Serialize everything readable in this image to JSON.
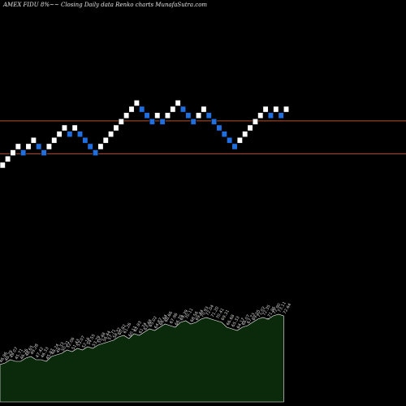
{
  "title": "AMEX  FIDU  8%~~  Closing Daily data  Renko  charts MunafaSutra.com",
  "colors": {
    "background": "#000000",
    "up_brick": "#ffffff",
    "down_brick": "#1f6fe0",
    "resistance_line": "#b5522e",
    "volume_fill": "#0b2a0b",
    "volume_stroke": "#ffffff"
  },
  "chart_data": {
    "type": "renko",
    "bricks": [
      {
        "dir": "up"
      },
      {
        "dir": "up"
      },
      {
        "dir": "up"
      },
      {
        "dir": "up"
      },
      {
        "dir": "down"
      },
      {
        "dir": "up"
      },
      {
        "dir": "up"
      },
      {
        "dir": "down"
      },
      {
        "dir": "down"
      },
      {
        "dir": "up"
      },
      {
        "dir": "up"
      },
      {
        "dir": "up"
      },
      {
        "dir": "up"
      },
      {
        "dir": "down"
      },
      {
        "dir": "up"
      },
      {
        "dir": "down"
      },
      {
        "dir": "down"
      },
      {
        "dir": "down"
      },
      {
        "dir": "down"
      },
      {
        "dir": "up"
      },
      {
        "dir": "up"
      },
      {
        "dir": "up"
      },
      {
        "dir": "up"
      },
      {
        "dir": "up"
      },
      {
        "dir": "up"
      },
      {
        "dir": "up"
      },
      {
        "dir": "up"
      },
      {
        "dir": "down"
      },
      {
        "dir": "down"
      },
      {
        "dir": "down"
      },
      {
        "dir": "up"
      },
      {
        "dir": "down"
      },
      {
        "dir": "up"
      },
      {
        "dir": "up"
      },
      {
        "dir": "up"
      },
      {
        "dir": "down"
      },
      {
        "dir": "down"
      },
      {
        "dir": "down"
      },
      {
        "dir": "up"
      },
      {
        "dir": "up"
      },
      {
        "dir": "down"
      },
      {
        "dir": "down"
      },
      {
        "dir": "down"
      },
      {
        "dir": "down"
      },
      {
        "dir": "down"
      },
      {
        "dir": "down"
      },
      {
        "dir": "up"
      },
      {
        "dir": "up"
      },
      {
        "dir": "up"
      },
      {
        "dir": "up"
      },
      {
        "dir": "up"
      },
      {
        "dir": "up"
      },
      {
        "dir": "down"
      },
      {
        "dir": "up"
      },
      {
        "dir": "down"
      },
      {
        "dir": "up"
      }
    ],
    "brick_levels": [
      0,
      1,
      2,
      3,
      2,
      3,
      4,
      3,
      2,
      3,
      4,
      5,
      6,
      5,
      6,
      5,
      4,
      3,
      2,
      3,
      4,
      5,
      6,
      7,
      8,
      9,
      10,
      9,
      8,
      7,
      8,
      7,
      8,
      9,
      10,
      9,
      8,
      7,
      8,
      9,
      8,
      7,
      6,
      5,
      4,
      3,
      4,
      5,
      6,
      7,
      8,
      9,
      8,
      9,
      8,
      9
    ],
    "lines": [
      {
        "level": 7.6
      },
      {
        "level": 2.3
      }
    ],
    "volume_label_prefix": "",
    "volume_labels": [
      "46.96",
      "48.29",
      "49.07",
      "45.71",
      "46.26",
      "48.65",
      "49.28",
      "47.42",
      "46.33",
      "45.87",
      "48.24",
      "49.33",
      "50.21",
      "52.06",
      "51.43",
      "53.07",
      "52.16",
      "54.55",
      "53.29",
      "55.48",
      "56.44",
      "57.71",
      "58.32",
      "60.82",
      "61.26",
      "60.11",
      "62.93",
      "61.74",
      "63.48",
      "65.02",
      "64.87",
      "66.64",
      "68.66",
      "67.96",
      "66.75",
      "69.39",
      "70.11",
      "68.56",
      "69.44",
      "70.93",
      "72.04",
      "71.20",
      "70.41",
      "69.31",
      "66.68",
      "65.33",
      "64.17",
      "66.07",
      "67.73",
      "69.05",
      "71.02",
      "72.35",
      "71.86",
      "72.90",
      "73.11",
      "72.64"
    ],
    "volume_values": [
      3,
      4,
      6,
      5,
      5,
      7,
      8,
      6,
      6,
      5,
      8,
      9,
      10,
      12,
      11,
      13,
      12,
      14,
      13,
      15,
      16,
      17,
      18,
      20,
      21,
      19,
      22,
      21,
      23,
      25,
      24,
      26,
      28,
      27,
      26,
      29,
      30,
      28,
      29,
      31,
      32,
      31,
      30,
      29,
      26,
      25,
      24,
      26,
      27,
      29,
      31,
      32,
      31,
      33,
      34,
      33
    ],
    "volume_marker": "^"
  }
}
